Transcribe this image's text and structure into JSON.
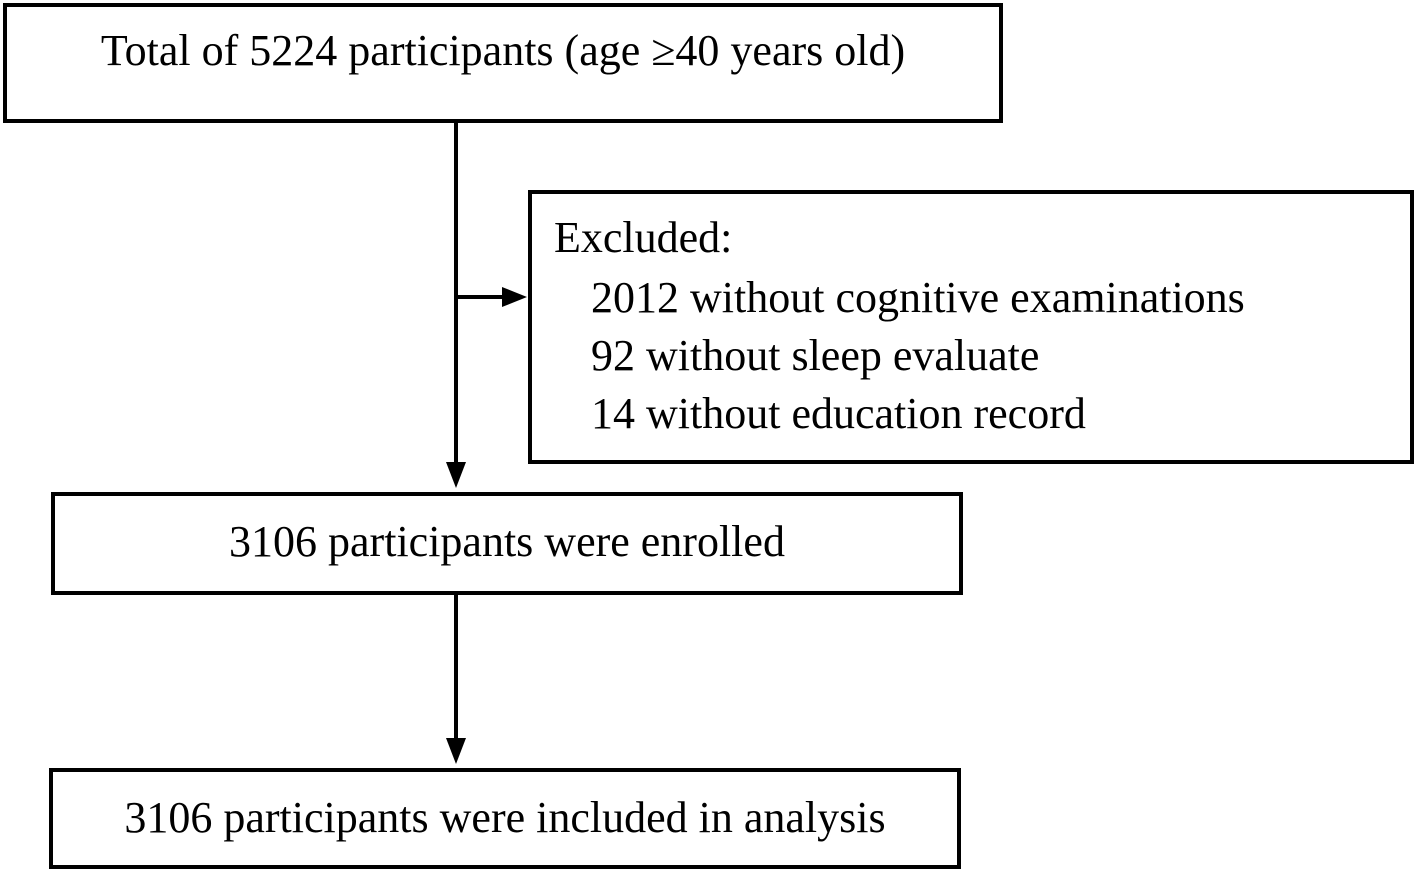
{
  "flowchart": {
    "total": {
      "label": "Total of 5224 participants (age ≥40 years old)"
    },
    "excluded": {
      "heading": "Excluded:",
      "reasons": [
        "2012 without cognitive examinations",
        "92 without sleep evaluate",
        "14 without education record"
      ]
    },
    "enrolled": {
      "label": "3106 participants were enrolled"
    },
    "analysis": {
      "label": "3106 participants were included in analysis"
    }
  },
  "colors": {
    "stroke": "#000000",
    "background": "#ffffff"
  }
}
